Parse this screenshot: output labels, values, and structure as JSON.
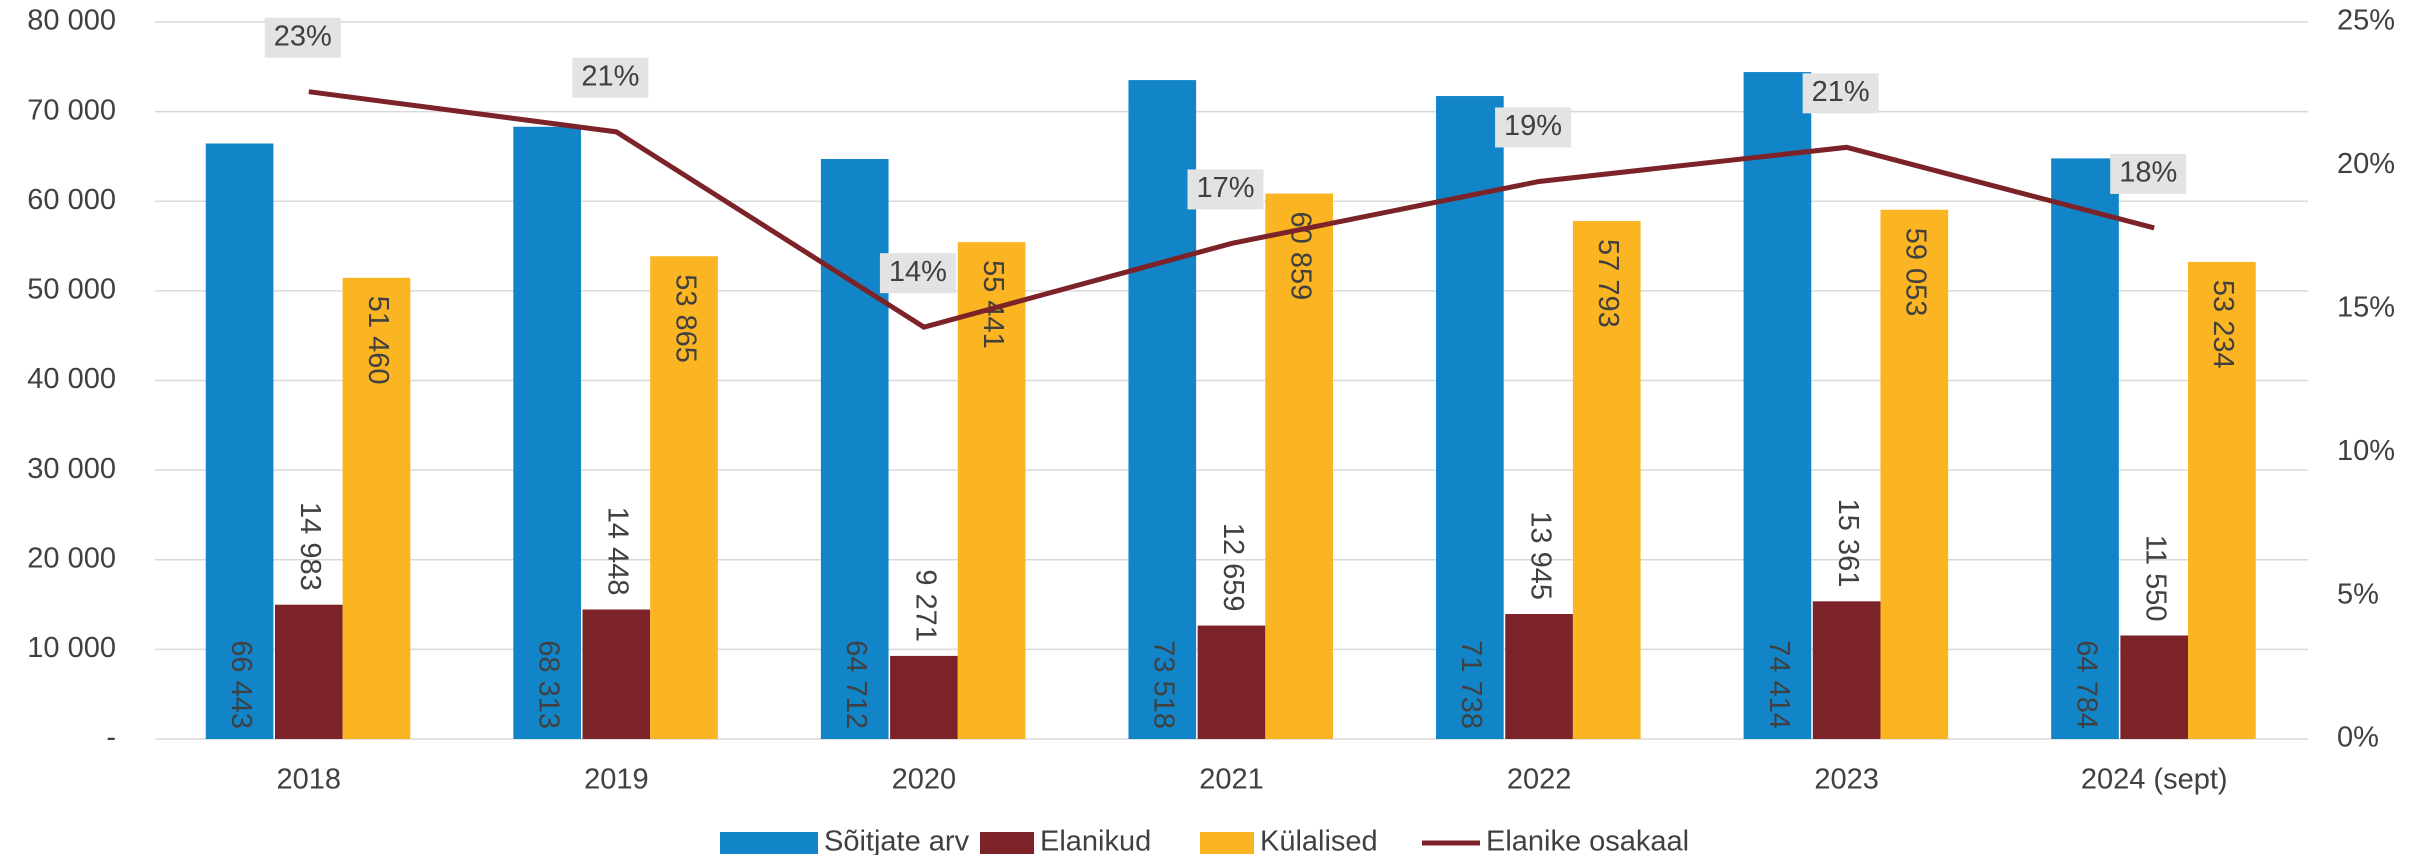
{
  "chart_data": {
    "type": "bar",
    "categories": [
      "2018",
      "2019",
      "2020",
      "2021",
      "2022",
      "2023",
      "2024 (sept)"
    ],
    "series": [
      {
        "name": "Sõitjate arv",
        "color": "#1185c8",
        "values": [
          66443,
          68313,
          64712,
          73518,
          71738,
          74414,
          64784
        ],
        "value_labels": [
          "66 443",
          "68 313",
          "64 712",
          "73 518",
          "71 738",
          "74 414",
          "64 784"
        ]
      },
      {
        "name": "Elanikud",
        "color": "#7b2329",
        "values": [
          14983,
          14448,
          9271,
          12659,
          13945,
          15361,
          11550
        ],
        "value_labels": [
          "14 983",
          "14 448",
          "9 271",
          "12 659",
          "13 945",
          "15 361",
          "11 550"
        ]
      },
      {
        "name": "Külalised",
        "color": "#fbb522",
        "values": [
          51460,
          53865,
          55441,
          60859,
          57793,
          59053,
          53234
        ],
        "value_labels": [
          "51 460",
          "53 865",
          "55 441",
          "60 859",
          "57 793",
          "59 053",
          "53 234"
        ]
      },
      {
        "name": "Elanike osakaal",
        "color": "#7b2329",
        "type": "line",
        "axis": "y2",
        "values": [
          22.57,
          21.17,
          14.36,
          17.28,
          19.44,
          20.63,
          17.82
        ],
        "value_labels": [
          "23%",
          "21%",
          "14%",
          "17%",
          "19%",
          "21%",
          "18%"
        ]
      }
    ],
    "ylim": [
      0,
      80000
    ],
    "yticks": [
      {
        "value": 0,
        "label": "-"
      },
      {
        "value": 10000,
        "label": "10 000"
      },
      {
        "value": 20000,
        "label": "20 000"
      },
      {
        "value": 30000,
        "label": "30 000"
      },
      {
        "value": 40000,
        "label": "40 000"
      },
      {
        "value": 50000,
        "label": "50 000"
      },
      {
        "value": 60000,
        "label": "60 000"
      },
      {
        "value": 70000,
        "label": "70 000"
      },
      {
        "value": 80000,
        "label": "80 000"
      }
    ],
    "y2lim": [
      0,
      25
    ],
    "y2ticks": [
      {
        "value": 0,
        "label": "0%"
      },
      {
        "value": 5,
        "label": "5%"
      },
      {
        "value": 10,
        "label": "10%"
      },
      {
        "value": 15,
        "label": "15%"
      },
      {
        "value": 20,
        "label": "20%"
      },
      {
        "value": 25,
        "label": "25%"
      }
    ],
    "grid": true,
    "legend": "bottom"
  }
}
